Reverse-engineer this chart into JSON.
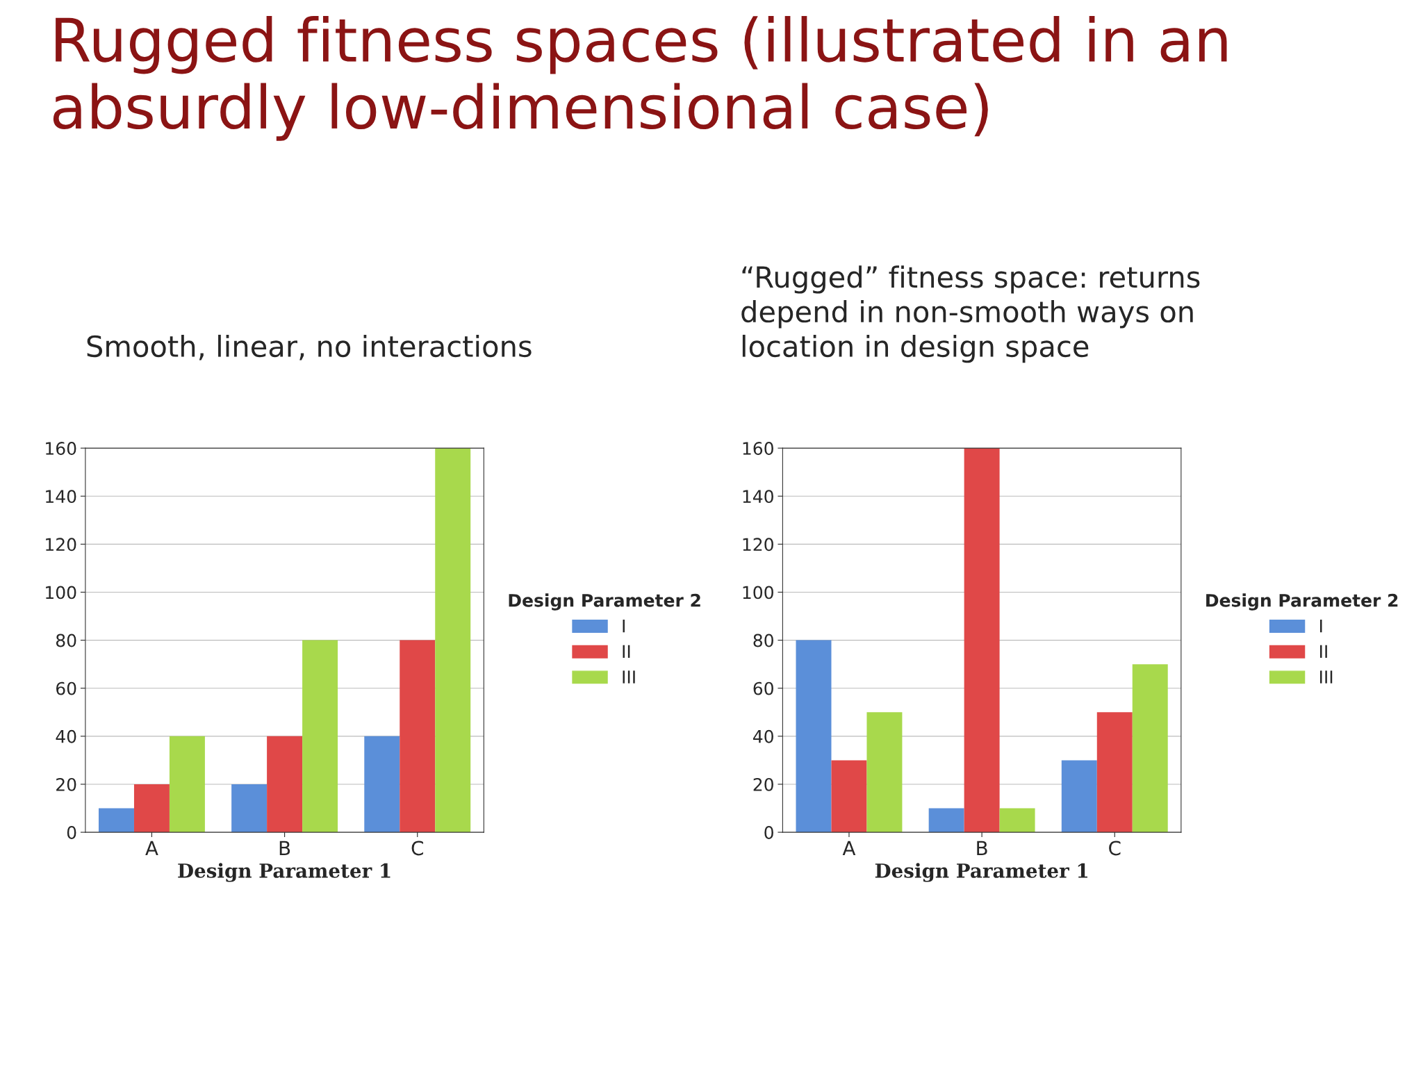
{
  "chart_data": [
    {
      "type": "bar",
      "title": "Rugged fitness spaces (illustrated in an absurdly low-dimensional case)",
      "subtitle": "Smooth, linear, no interactions",
      "xlabel": "Design Parameter 1",
      "legend_title": "Design Parameter 2",
      "categories": [
        "A",
        "B",
        "C"
      ],
      "series": [
        {
          "name": "I",
          "color": "#5b8fd9",
          "values": [
            10,
            20,
            40
          ]
        },
        {
          "name": "II",
          "color": "#e04848",
          "values": [
            20,
            40,
            80
          ]
        },
        {
          "name": "III",
          "color": "#a8d94c",
          "values": [
            40,
            80,
            160
          ]
        }
      ],
      "ylim": [
        0,
        160
      ],
      "yticks": [
        0,
        20,
        40,
        60,
        80,
        100,
        120,
        140,
        160
      ],
      "grid": "y",
      "legend": "right"
    },
    {
      "type": "bar",
      "subtitle": "“Rugged” fitness space: returns\ndepend in non-smooth ways on\nlocation in design space",
      "xlabel": "Design Parameter 1",
      "legend_title": "Design Parameter 2",
      "categories": [
        "A",
        "B",
        "C"
      ],
      "series": [
        {
          "name": "I",
          "color": "#5b8fd9",
          "values": [
            80,
            10,
            30
          ]
        },
        {
          "name": "II",
          "color": "#e04848",
          "values": [
            30,
            160,
            50
          ]
        },
        {
          "name": "III",
          "color": "#a8d94c",
          "values": [
            50,
            10,
            70
          ]
        }
      ],
      "ylim": [
        0,
        160
      ],
      "yticks": [
        0,
        20,
        40,
        60,
        80,
        100,
        120,
        140,
        160
      ],
      "grid": "y",
      "legend": "right"
    }
  ]
}
